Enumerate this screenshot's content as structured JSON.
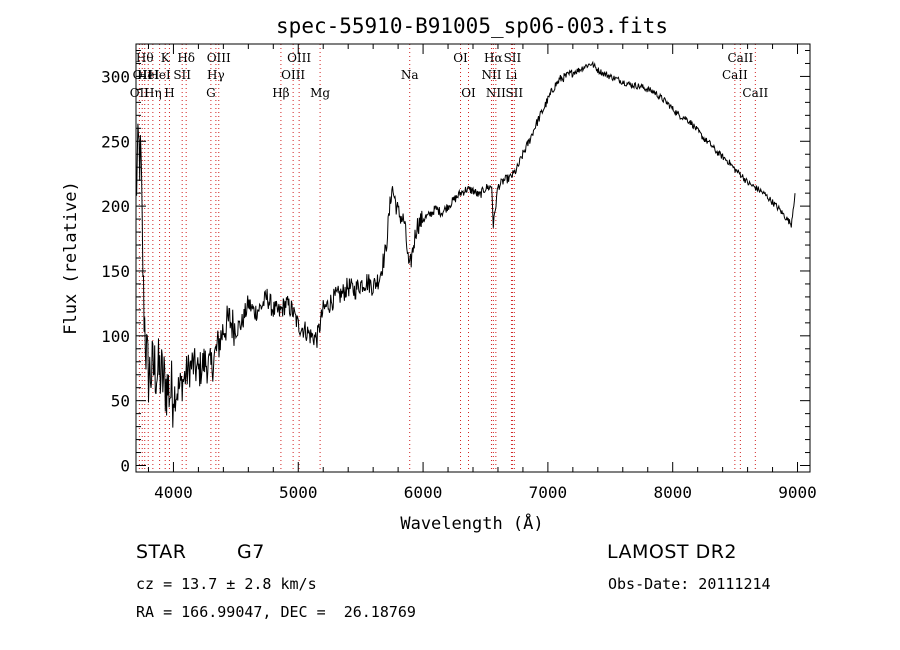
{
  "chart_data": {
    "type": "line",
    "title": "spec-55910-B91005_sp06-003.fits",
    "xlabel": "Wavelength (Å)",
    "ylabel": "Flux (relative)",
    "xlim": [
      3700,
      9100
    ],
    "ylim": [
      -5,
      325
    ],
    "xticks": [
      4000,
      5000,
      6000,
      7000,
      8000,
      9000
    ],
    "yticks": [
      0,
      50,
      100,
      150,
      200,
      250,
      300
    ],
    "grid": false,
    "series": [
      {
        "color": "#000000",
        "x": [
          3700,
          3720,
          3740,
          3760,
          3780,
          3800,
          3850,
          3900,
          3950,
          4000,
          4050,
          4100,
          4150,
          4200,
          4250,
          4300,
          4350,
          4400,
          4450,
          4500,
          4550,
          4600,
          4650,
          4700,
          4750,
          4800,
          4850,
          4900,
          4950,
          5000,
          5050,
          5100,
          5150,
          5200,
          5250,
          5300,
          5350,
          5400,
          5450,
          5500,
          5550,
          5600,
          5650,
          5700,
          5750,
          5800,
          5850,
          5890,
          5950,
          6000,
          6050,
          6100,
          6150,
          6200,
          6250,
          6300,
          6350,
          6400,
          6450,
          6500,
          6550,
          6563,
          6600,
          6650,
          6700,
          6750,
          6800,
          6850,
          6900,
          6950,
          7000,
          7050,
          7100,
          7150,
          7200,
          7250,
          7300,
          7350,
          7400,
          7450,
          7500,
          7550,
          7600,
          7650,
          7700,
          7750,
          7800,
          7850,
          7900,
          7950,
          8000,
          8050,
          8100,
          8150,
          8200,
          8250,
          8300,
          8350,
          8400,
          8450,
          8500,
          8550,
          8600,
          8650,
          8700,
          8750,
          8800,
          8850,
          8900,
          8950,
          8980
        ],
        "y": [
          210,
          245,
          230,
          130,
          90,
          70,
          75,
          70,
          60,
          55,
          60,
          70,
          78,
          72,
          80,
          75,
          90,
          105,
          112,
          105,
          110,
          125,
          118,
          122,
          130,
          120,
          118,
          125,
          120,
          108,
          105,
          100,
          98,
          120,
          125,
          130,
          132,
          138,
          135,
          140,
          142,
          138,
          145,
          165,
          215,
          195,
          188,
          150,
          185,
          190,
          193,
          198,
          195,
          200,
          205,
          210,
          213,
          212,
          208,
          214,
          215,
          185,
          215,
          220,
          222,
          228,
          240,
          250,
          262,
          272,
          282,
          292,
          298,
          300,
          303,
          305,
          308,
          310,
          305,
          302,
          300,
          298,
          296,
          294,
          293,
          292,
          290,
          288,
          284,
          280,
          275,
          270,
          268,
          264,
          258,
          252,
          248,
          242,
          238,
          234,
          228,
          224,
          218,
          215,
          212,
          208,
          203,
          198,
          192,
          186,
          210
        ]
      }
    ],
    "lines": [
      {
        "x": 3727,
        "label": "OII",
        "row": 3
      },
      {
        "x": 3750,
        "label": "OII",
        "row": 2
      },
      {
        "x": 3770,
        "label": "Hθ",
        "row": 1
      },
      {
        "x": 3798,
        "label": "HeI",
        "row": 2
      },
      {
        "x": 3835,
        "label": "Hη",
        "row": 3
      },
      {
        "x": 3889,
        "label": "HeI",
        "row": 2
      },
      {
        "x": 3934,
        "label": "K",
        "row": 1
      },
      {
        "x": 3968,
        "label": "H",
        "row": 3
      },
      {
        "x": 4070,
        "label": "SII",
        "row": 2
      },
      {
        "x": 4102,
        "label": "Hδ",
        "row": 1
      },
      {
        "x": 4300,
        "label": "G",
        "row": 3
      },
      {
        "x": 4340,
        "label": "Hγ",
        "row": 2
      },
      {
        "x": 4363,
        "label": "OIII",
        "row": 1
      },
      {
        "x": 4861,
        "label": "Hβ",
        "row": 3
      },
      {
        "x": 4959,
        "label": "OIII",
        "row": 2
      },
      {
        "x": 5007,
        "label": "OIII",
        "row": 1
      },
      {
        "x": 5175,
        "label": "Mg",
        "row": 3
      },
      {
        "x": 5893,
        "label": "Na",
        "row": 2
      },
      {
        "x": 6300,
        "label": "OI",
        "row": 1
      },
      {
        "x": 6364,
        "label": "OI",
        "row": 3
      },
      {
        "x": 6548,
        "label": "NII",
        "row": 2
      },
      {
        "x": 6563,
        "label": "Hα",
        "row": 1
      },
      {
        "x": 6583,
        "label": "NII",
        "row": 3
      },
      {
        "x": 6708,
        "label": "Li",
        "row": 2
      },
      {
        "x": 6716,
        "label": "SII",
        "row": 1
      },
      {
        "x": 6731,
        "label": "SII",
        "row": 3
      },
      {
        "x": 8498,
        "label": "CaII",
        "row": 2
      },
      {
        "x": 8542,
        "label": "CaII",
        "row": 1
      },
      {
        "x": 8662,
        "label": "CaII",
        "row": 3
      }
    ]
  },
  "info": {
    "class": "STAR",
    "subclass": "G7",
    "survey": "LAMOST DR2",
    "cz": "cz = 13.7 ± 2.8 km/s",
    "obs_date": "Obs-Date: 20111214",
    "radec": "RA = 166.99047, DEC =  26.18769"
  }
}
